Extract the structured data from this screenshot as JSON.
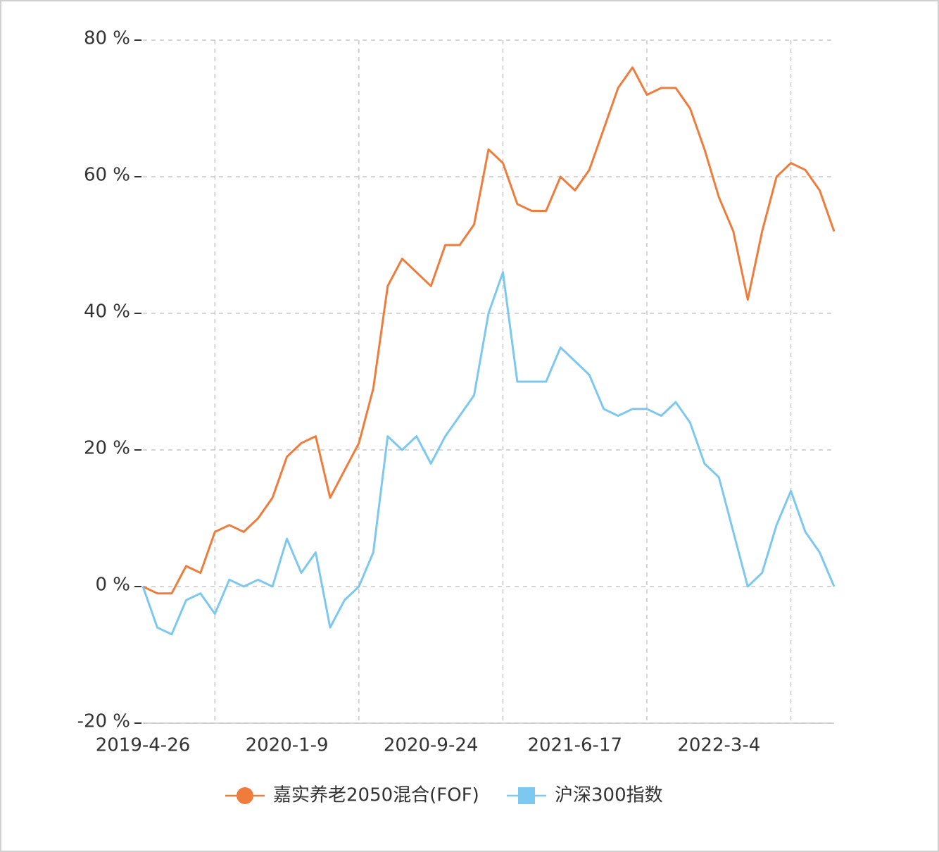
{
  "chart_data": {
    "type": "line",
    "categories": [
      "2019-4-26",
      null,
      null,
      null,
      null,
      null,
      null,
      null,
      null,
      null,
      "2020-1-9",
      null,
      null,
      null,
      null,
      null,
      null,
      null,
      null,
      null,
      "2020-9-24",
      null,
      null,
      null,
      null,
      null,
      null,
      null,
      null,
      null,
      "2021-6-17",
      null,
      null,
      null,
      null,
      null,
      null,
      null,
      null,
      null,
      "2022-3-4",
      null,
      null,
      null,
      null,
      null,
      null,
      null,
      null
    ],
    "series": [
      {
        "name": "嘉实养老2050混合(FOF)",
        "color": "#f07c3c",
        "values": [
          0,
          -1,
          -1,
          3,
          2,
          8,
          9,
          8,
          10,
          13,
          19,
          21,
          22,
          13,
          17,
          21,
          29,
          44,
          48,
          46,
          44,
          50,
          50,
          53,
          64,
          62,
          56,
          55,
          55,
          60,
          58,
          61,
          67,
          73,
          76,
          72,
          73,
          73,
          70,
          64,
          57,
          52,
          42,
          52,
          60,
          62,
          61,
          58,
          52
        ]
      },
      {
        "name": "沪深300指数",
        "color": "#7cc8f0",
        "values": [
          0,
          -6,
          -7,
          -2,
          -1,
          -4,
          1,
          0,
          1,
          0,
          7,
          2,
          5,
          -6,
          -2,
          0,
          5,
          22,
          20,
          22,
          18,
          22,
          25,
          28,
          40,
          46,
          30,
          30,
          30,
          35,
          33,
          31,
          26,
          25,
          26,
          26,
          25,
          27,
          24,
          18,
          16,
          8,
          0,
          2,
          9,
          14,
          8,
          5,
          0
        ]
      }
    ],
    "ylim": [
      -20,
      80
    ],
    "yticks": [
      {
        "value": -20,
        "label": "-20 %"
      },
      {
        "value": 0,
        "label": "0 %"
      },
      {
        "value": 20,
        "label": "20 %"
      },
      {
        "value": 40,
        "label": "40 %"
      },
      {
        "value": 60,
        "label": "60 %"
      },
      {
        "value": 80,
        "label": "80 %"
      }
    ],
    "grid": true,
    "legend": "bottom"
  }
}
